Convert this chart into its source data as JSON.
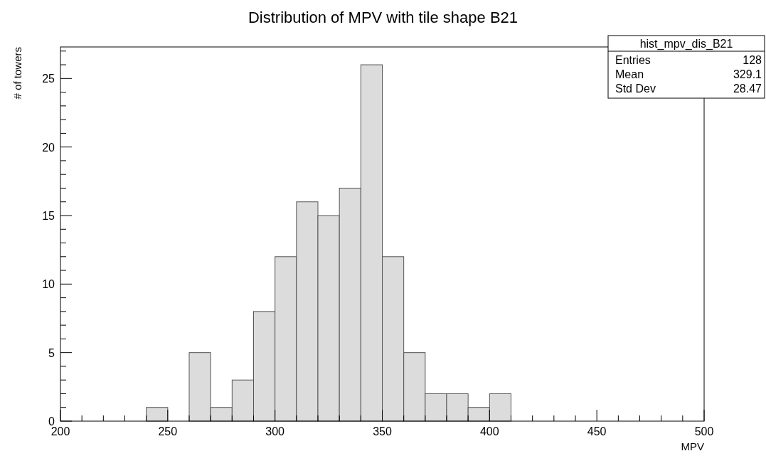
{
  "chart_data": {
    "type": "histogram",
    "title": "Distribution of MPV with tile shape B21",
    "xlabel": "MPV",
    "ylabel": "# of towers",
    "bins": [
      200,
      210,
      220,
      230,
      240,
      250,
      260,
      270,
      280,
      290,
      300,
      310,
      320,
      330,
      340,
      350,
      360,
      370,
      380,
      390,
      400,
      410,
      420,
      430,
      440,
      450,
      460,
      470,
      480,
      490,
      500
    ],
    "values": [
      0,
      0,
      0,
      0,
      1,
      0,
      5,
      1,
      3,
      8,
      12,
      16,
      15,
      17,
      26,
      12,
      5,
      2,
      2,
      1,
      2,
      0,
      0,
      0,
      0,
      0,
      0,
      0,
      0,
      0
    ],
    "color": "#dcdcdc",
    "xlim": [
      200,
      500
    ],
    "ylim": [
      0,
      27.3
    ],
    "xticks": [
      200,
      {
        "value": 210,
        "label": null
      },
      {
        "value": 220,
        "label": null
      },
      {
        "value": 230,
        "label": null
      },
      {
        "value": 240,
        "label": null
      },
      250,
      {
        "value": 260,
        "label": null
      },
      {
        "value": 270,
        "label": null
      },
      {
        "value": 280,
        "label": null
      },
      {
        "value": 290,
        "label": null
      },
      300,
      {
        "value": 310,
        "label": null
      },
      {
        "value": 320,
        "label": null
      },
      {
        "value": 330,
        "label": null
      },
      {
        "value": 340,
        "label": null
      },
      350,
      {
        "value": 360,
        "label": null
      },
      {
        "value": 370,
        "label": null
      },
      {
        "value": 380,
        "label": null
      },
      {
        "value": 390,
        "label": null
      },
      400,
      {
        "value": 410,
        "label": null
      },
      {
        "value": 420,
        "label": null
      },
      {
        "value": 430,
        "label": null
      },
      {
        "value": 440,
        "label": null
      },
      450,
      {
        "value": 460,
        "label": null
      },
      {
        "value": 470,
        "label": null
      },
      {
        "value": 480,
        "label": null
      },
      {
        "value": 490,
        "label": null
      },
      500
    ],
    "yticks": [
      0,
      {
        "value": 1,
        "label": null
      },
      {
        "value": 2,
        "label": null
      },
      {
        "value": 3,
        "label": null
      },
      {
        "value": 4,
        "label": null
      },
      5,
      {
        "value": 6,
        "label": null
      },
      {
        "value": 7,
        "label": null
      },
      {
        "value": 8,
        "label": null
      },
      {
        "value": 9,
        "label": null
      },
      10,
      {
        "value": 11,
        "label": null
      },
      {
        "value": 12,
        "label": null
      },
      {
        "value": 13,
        "label": null
      },
      {
        "value": 14,
        "label": null
      },
      15,
      {
        "value": 16,
        "label": null
      },
      {
        "value": 17,
        "label": null
      },
      {
        "value": 18,
        "label": null
      },
      {
        "value": 19,
        "label": null
      },
      20,
      {
        "value": 21,
        "label": null
      },
      {
        "value": 22,
        "label": null
      },
      {
        "value": 23,
        "label": null
      },
      {
        "value": 24,
        "label": null
      },
      25,
      {
        "value": 26,
        "label": null
      },
      {
        "value": 27,
        "label": null
      }
    ],
    "annotations": [
      "hist_mpv_dis_B21",
      "Entries",
      "128",
      "Mean",
      "329.1",
      "Std Dev",
      "28.47"
    ]
  }
}
